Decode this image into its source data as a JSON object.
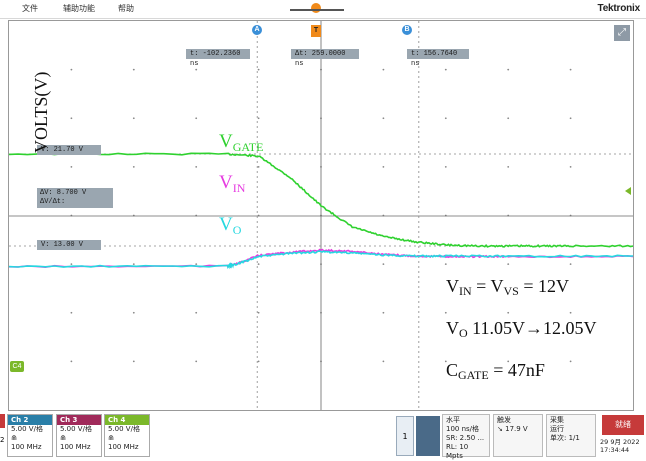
{
  "menubar": {
    "items": [
      "文件",
      "辅助功能",
      "帮助"
    ],
    "brand": "Tektronix"
  },
  "markers": {
    "a": "A",
    "b": "B",
    "ch4": "C4",
    "trig": "T"
  },
  "cursor_readouts": {
    "t_a": "t: -102.2360 ns",
    "delta_t": "Δt: 259.0000 ns",
    "t_b": "t: 156.7640 ns"
  },
  "v_cursor_1": "V: 21.70 V",
  "v_cursor_2": "V: 13.00 V",
  "delta_v": {
    "line1": "ΔV: 8.700 V",
    "line2": "ΔV/Δt:"
  },
  "axis": {
    "ylabel": "VOLTS(V)"
  },
  "traces": {
    "vgate": {
      "main": "V",
      "sub": "GATE",
      "color": "#2fd12f"
    },
    "vin": {
      "main": "V",
      "sub": "IN",
      "color": "#e63ce0"
    },
    "vo": {
      "main": "V",
      "sub": "O",
      "color": "#25d8e0"
    }
  },
  "annotations": {
    "line1": {
      "a": "V",
      "a_sub": "IN",
      "b": " = V",
      "b_sub": "VS",
      "c": " = 12V"
    },
    "line2": {
      "a": "V",
      "a_sub": "O",
      "b": " 11.05V→12.05V"
    },
    "line3": {
      "a": "C",
      "a_sub": "GATE",
      "b": " = 47nF"
    }
  },
  "channels": [
    {
      "name": "Ch 2",
      "scale": "5.00 V/格",
      "bw": "100 MHz",
      "color": "#2a7fa8"
    },
    {
      "name": "Ch 3",
      "scale": "5.00 V/格",
      "bw": "100 MHz",
      "color": "#a02a5a"
    },
    {
      "name": "Ch 4",
      "scale": "5.00 V/格",
      "bw": "100 MHz",
      "color": "#7bb82a"
    }
  ],
  "horizontal": {
    "title": "水平",
    "line1": "100 ns/格",
    "line2": "SR: 2.50 ...",
    "line3": "RL: 10 Mpts"
  },
  "trigger": {
    "title": "触发",
    "level": "17.9 V"
  },
  "acquire": {
    "title": "采集",
    "line1": "运行",
    "line2": "单次: 1/1"
  },
  "status": {
    "button": "就绪",
    "date": "29 9月 2022",
    "time": "17:34:44"
  },
  "misc": {
    "page": "1",
    "left_cut": "2"
  },
  "chart_data": {
    "type": "line",
    "x_unit": "ns",
    "xlim": [
      -500,
      500
    ],
    "y_unit": "V",
    "grid": true,
    "series": [
      {
        "name": "V_GATE",
        "color": "#2fd12f",
        "x": [
          -500,
          -150,
          -100,
          -50,
          0,
          50,
          100,
          150,
          200,
          250,
          300,
          350,
          400,
          500
        ],
        "y": [
          21.7,
          21.7,
          21.5,
          19.5,
          16.8,
          14.8,
          13.9,
          13.4,
          13.1,
          13.0,
          13.0,
          13.0,
          13.0,
          13.0
        ]
      },
      {
        "name": "V_IN",
        "color": "#e63ce0",
        "x": [
          -500,
          -150,
          -140,
          -100,
          -50,
          0,
          50,
          100,
          150,
          200,
          250,
          300,
          500
        ],
        "y": [
          11.05,
          11.1,
          11.2,
          12.1,
          12.4,
          12.6,
          12.5,
          12.2,
          12.05,
          12.0,
          12.0,
          12.0,
          12.0
        ]
      },
      {
        "name": "V_O",
        "color": "#25d8e0",
        "x": [
          -500,
          -150,
          -140,
          -100,
          -50,
          0,
          50,
          100,
          150,
          200,
          300,
          500
        ],
        "y": [
          11.05,
          11.1,
          11.2,
          12.0,
          12.3,
          12.45,
          12.35,
          12.15,
          12.05,
          12.05,
          12.05,
          12.05
        ]
      }
    ]
  }
}
